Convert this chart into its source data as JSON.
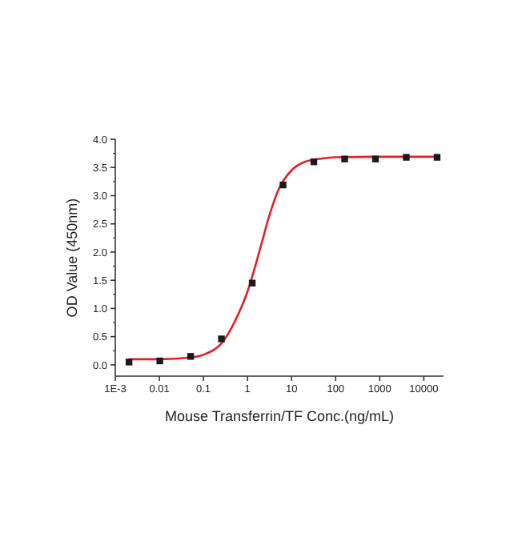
{
  "chart_data": {
    "type": "scatter",
    "xlabel": "Mouse Transferrin/TF Conc.(ng/mL)",
    "ylabel": "OD Value (450nm)",
    "log": "x",
    "xlim": [
      0.001,
      28000
    ],
    "ylim": [
      -0.2,
      4.0
    ],
    "xticks": [
      {
        "value": 0.001,
        "label": "1E-3"
      },
      0.01,
      0.1,
      1,
      10,
      100,
      1000,
      10000
    ],
    "yticks": [
      {
        "value": 0,
        "label": "0.0"
      },
      {
        "value": 0.5,
        "label": "0.5"
      },
      {
        "value": 1,
        "label": "1.0"
      },
      {
        "value": 1.5,
        "label": "1.5"
      },
      {
        "value": 2,
        "label": "2.0"
      },
      {
        "value": 2.5,
        "label": "2.5"
      },
      {
        "value": 3,
        "label": "3.0"
      },
      {
        "value": 3.5,
        "label": "3.5"
      },
      {
        "value": 4,
        "label": "4.0"
      }
    ],
    "grid": false,
    "series": [
      {
        "color": "#1a1a1a",
        "marker": "square",
        "x": [
          0.002048,
          0.01024,
          0.0512,
          0.256,
          1.28,
          6.4,
          32,
          160,
          800,
          4000,
          20000
        ],
        "values": [
          0.05,
          0.07,
          0.15,
          0.46,
          1.45,
          3.19,
          3.6,
          3.65,
          3.65,
          3.68,
          3.68
        ]
      },
      {
        "type": "line",
        "color": "#e0202a",
        "marker": "none",
        "line_style": "solid",
        "x": [
          0.002,
          0.01,
          0.05,
          0.1,
          0.3,
          0.5,
          1,
          2,
          3,
          5,
          10,
          20,
          50,
          100,
          1000,
          20000
        ],
        "values": [
          0.1,
          0.1,
          0.13,
          0.18,
          0.45,
          0.75,
          1.3,
          2.1,
          2.6,
          3.1,
          3.45,
          3.6,
          3.66,
          3.68,
          3.69,
          3.69
        ]
      }
    ]
  }
}
